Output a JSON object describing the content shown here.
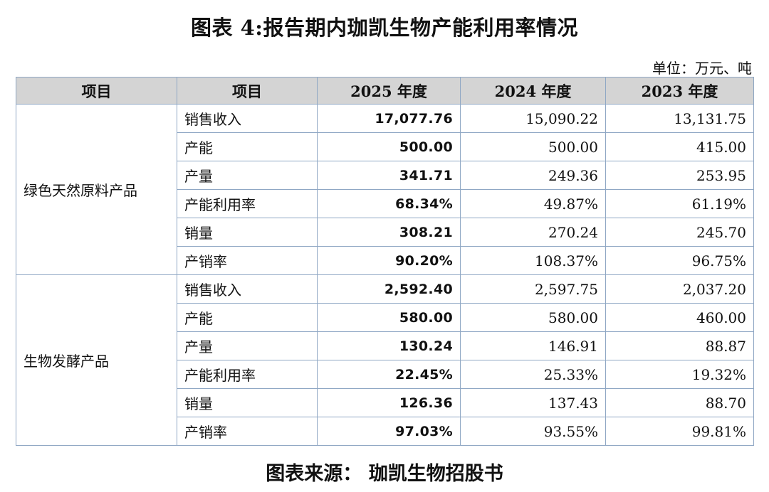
{
  "title": "图表 4:报告期内珈凯生物产能利用率情况",
  "unit": "单位：万元、吨",
  "headers": [
    "项目",
    "项目",
    "2025 年度",
    "2024 年度",
    "2023 年度"
  ],
  "groups": [
    {
      "name": "绿色天然原料产品",
      "rows": [
        {
          "item": "销售收入",
          "y2025": "17,077.76",
          "y2024": "15,090.22",
          "y2023": "13,131.75"
        },
        {
          "item": "产能",
          "y2025": "500.00",
          "y2024": "500.00",
          "y2023": "415.00"
        },
        {
          "item": "产量",
          "y2025": "341.71",
          "y2024": "249.36",
          "y2023": "253.95"
        },
        {
          "item": "产能利用率",
          "y2025": "68.34%",
          "y2024": "49.87%",
          "y2023": "61.19%"
        },
        {
          "item": "销量",
          "y2025": "308.21",
          "y2024": "270.24",
          "y2023": "245.70"
        },
        {
          "item": "产销率",
          "y2025": "90.20%",
          "y2024": "108.37%",
          "y2023": "96.75%"
        }
      ]
    },
    {
      "name": "生物发酵产品",
      "rows": [
        {
          "item": "销售收入",
          "y2025": "2,592.40",
          "y2024": "2,597.75",
          "y2023": "2,037.20"
        },
        {
          "item": "产能",
          "y2025": "580.00",
          "y2024": "580.00",
          "y2023": "460.00"
        },
        {
          "item": "产量",
          "y2025": "130.24",
          "y2024": "146.91",
          "y2023": "88.87"
        },
        {
          "item": "产能利用率",
          "y2025": "22.45%",
          "y2024": "25.33%",
          "y2023": "19.32%"
        },
        {
          "item": "销量",
          "y2025": "126.36",
          "y2024": "137.43",
          "y2023": "88.70"
        },
        {
          "item": "产销率",
          "y2025": "97.03%",
          "y2024": "93.55%",
          "y2023": "99.81%"
        }
      ]
    }
  ],
  "source": "图表来源： 珈凯生物招股书",
  "colors": {
    "header_bg": "#d4d4d4",
    "border": "#8fa7c4"
  }
}
